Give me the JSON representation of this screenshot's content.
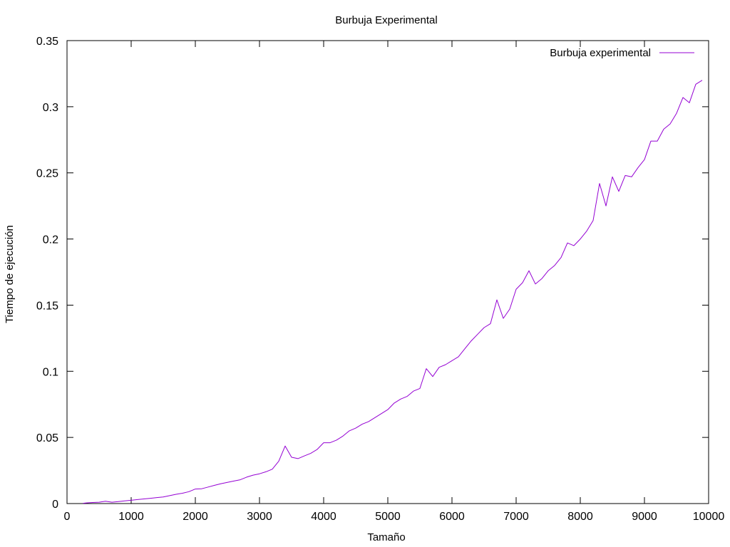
{
  "chart_data": {
    "type": "line",
    "title": "Burbuja Experimental",
    "xlabel": "Tamaño",
    "ylabel": "Tiempo de ejecución",
    "xlim": [
      0,
      10000
    ],
    "ylim": [
      0,
      0.35
    ],
    "xticks": [
      0,
      1000,
      2000,
      3000,
      4000,
      5000,
      6000,
      7000,
      8000,
      9000,
      10000
    ],
    "yticks": [
      0,
      0.05,
      0.1,
      0.15,
      0.2,
      0.25,
      0.3,
      0.35
    ],
    "xtick_labels": [
      "0",
      "1000",
      "2000",
      "3000",
      "4000",
      "5000",
      "6000",
      "7000",
      "8000",
      "9000",
      "10000"
    ],
    "ytick_labels": [
      "0",
      "0.05",
      "0.1",
      "0.15",
      "0.2",
      "0.25",
      "0.3",
      "0.35"
    ],
    "grid": false,
    "legend_position": "top-right",
    "series": [
      {
        "name": "Burbuja experimental",
        "color": "#9400d3",
        "x": [
          250,
          300,
          400,
          500,
          600,
          700,
          800,
          900,
          1000,
          1100,
          1200,
          1300,
          1400,
          1500,
          1600,
          1700,
          1800,
          1900,
          2000,
          2100,
          2200,
          2300,
          2400,
          2500,
          2600,
          2700,
          2800,
          2900,
          3000,
          3100,
          3200,
          3300,
          3400,
          3500,
          3600,
          3700,
          3800,
          3900,
          4000,
          4100,
          4200,
          4300,
          4400,
          4500,
          4600,
          4700,
          4800,
          4900,
          5000,
          5100,
          5200,
          5300,
          5400,
          5500,
          5600,
          5700,
          5800,
          5900,
          6000,
          6100,
          6200,
          6300,
          6400,
          6500,
          6600,
          6700,
          6800,
          6900,
          7000,
          7100,
          7200,
          7300,
          7400,
          7500,
          7600,
          7700,
          7800,
          7900,
          8000,
          8100,
          8200,
          8300,
          8400,
          8500,
          8600,
          8700,
          8800,
          8900,
          9000,
          9100,
          9200,
          9300,
          9400,
          9500,
          9600,
          9700,
          9800,
          9900
        ],
        "y": [
          0.0002,
          0.0005,
          0.0008,
          0.001,
          0.0018,
          0.001,
          0.0015,
          0.002,
          0.0025,
          0.003,
          0.0035,
          0.004,
          0.0045,
          0.005,
          0.006,
          0.007,
          0.0078,
          0.009,
          0.011,
          0.0112,
          0.0125,
          0.0138,
          0.015,
          0.016,
          0.017,
          0.018,
          0.02,
          0.0215,
          0.0225,
          0.024,
          0.026,
          0.032,
          0.0435,
          0.035,
          0.034,
          0.036,
          0.038,
          0.041,
          0.046,
          0.046,
          0.048,
          0.051,
          0.055,
          0.057,
          0.06,
          0.062,
          0.065,
          0.068,
          0.071,
          0.076,
          0.079,
          0.081,
          0.085,
          0.087,
          0.102,
          0.096,
          0.103,
          0.105,
          0.108,
          0.111,
          0.117,
          0.123,
          0.128,
          0.133,
          0.136,
          0.154,
          0.14,
          0.147,
          0.162,
          0.167,
          0.176,
          0.166,
          0.17,
          0.176,
          0.18,
          0.186,
          0.197,
          0.195,
          0.2,
          0.206,
          0.214,
          0.242,
          0.225,
          0.247,
          0.236,
          0.248,
          0.247,
          0.254,
          0.26,
          0.274,
          0.274,
          0.283,
          0.287,
          0.295,
          0.307,
          0.303,
          0.317,
          0.32
        ]
      }
    ]
  }
}
